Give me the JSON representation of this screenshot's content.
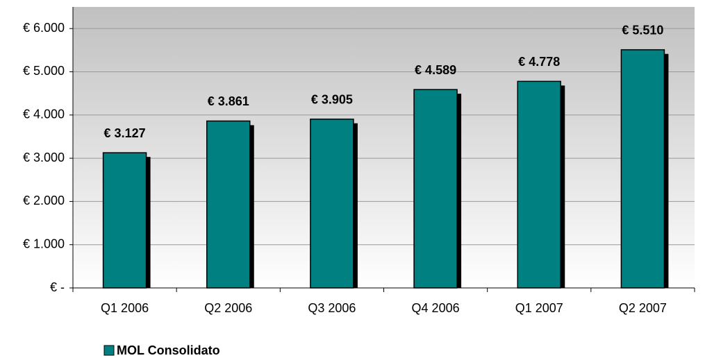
{
  "chart_data": {
    "type": "bar",
    "categories": [
      "Q1 2006",
      "Q2 2006",
      "Q3 2006",
      "Q4 2006",
      "Q1 2007",
      "Q2 2007"
    ],
    "series": [
      {
        "name": "MOL Consolidato",
        "color": "#008080",
        "values": [
          3127,
          3861,
          3905,
          4589,
          4778,
          5510
        ],
        "value_labels": [
          "€ 3.127",
          "€ 3.861",
          "€ 3.905",
          "€ 4.589",
          "€ 4.778",
          "€ 5.510"
        ]
      }
    ],
    "ylim": [
      0,
      6500
    ],
    "yticks": [
      {
        "value": 0,
        "label": "€ -"
      },
      {
        "value": 1000,
        "label": "€ 1.000"
      },
      {
        "value": 2000,
        "label": "€ 2.000"
      },
      {
        "value": 3000,
        "label": "€ 3.000"
      },
      {
        "value": 4000,
        "label": "€ 4.000"
      },
      {
        "value": 5000,
        "label": "€ 5.000"
      },
      {
        "value": 6000,
        "label": "€ 6.000"
      }
    ],
    "grid": true,
    "legend": "bottom"
  }
}
